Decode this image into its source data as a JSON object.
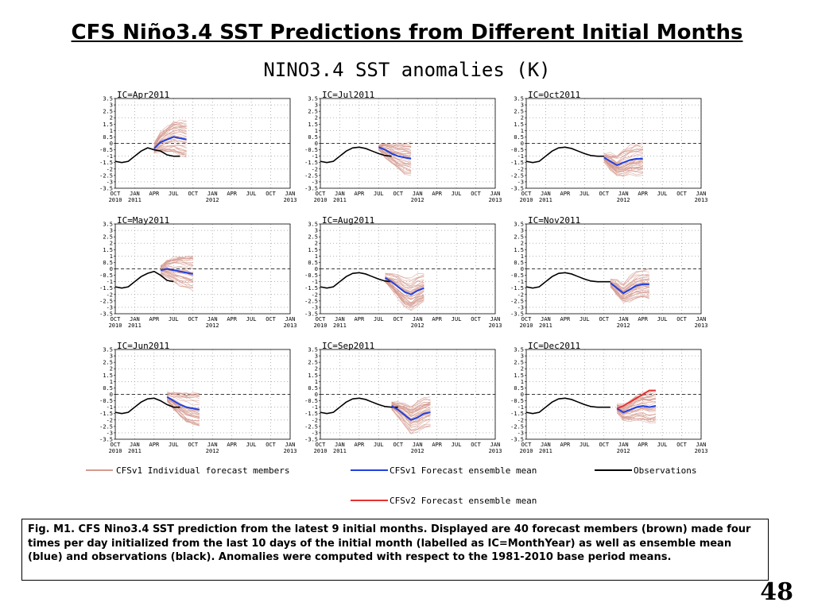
{
  "slide": {
    "title": "CFS Niño3.4 SST Predictions from Different Initial Months",
    "page_number": "48",
    "caption": "Fig. M1. CFS Nino3.4 SST prediction from the latest 9 initial months. Displayed are 40 forecast members (brown) made four times per day initialized from the last 10 days of the initial month (labelled as IC=MonthYear) as well as ensemble mean (blue) and observations (black). Anomalies were computed with respect to the 1981-2010 base period means."
  },
  "figure_title": "NINO3.4  SST  anomalies  (K)",
  "legend": {
    "members": "CFSv1  Individual  forecast  members",
    "mean_v1": "CFSv1  Forecast  ensemble  mean",
    "observations": "Observations",
    "mean_v2": "CFSv2  Forecast  ensemble  mean"
  },
  "colors": {
    "members": "#d49a8e",
    "mean_v1": "#2040e0",
    "observations": "#000000",
    "mean_v2": "#e83030",
    "zero_line": "#000000",
    "grid": "#888888"
  },
  "axes": {
    "y_ticks": [
      "-3.5",
      "-3",
      "-2.5",
      "-2",
      "-1.5",
      "-1",
      "-0.5",
      "0",
      "0.5",
      "1",
      "1.5",
      "2",
      "2.5",
      "3",
      "3.5"
    ],
    "x_ticks": [
      "OCT",
      "JAN",
      "APR",
      "JUL",
      "OCT",
      "JAN",
      "APR",
      "JUL",
      "OCT",
      "JAN"
    ],
    "x_year_labels": [
      {
        "text": "2010",
        "tick": 0
      },
      {
        "text": "2011",
        "tick": 1
      },
      {
        "text": "2012",
        "tick": 5
      },
      {
        "text": "2013",
        "tick": 9
      }
    ]
  },
  "chart_data": [
    {
      "type": "line",
      "ic": "IC=Apr2011",
      "x": "months since Oct 2010",
      "ylim": [
        -3.5,
        3.5
      ],
      "observations": [
        [
          0,
          -1.4
        ],
        [
          1,
          -1.5
        ],
        [
          2,
          -1.4
        ],
        [
          3,
          -1.0
        ],
        [
          4,
          -0.6
        ],
        [
          5,
          -0.35
        ],
        [
          6,
          -0.5
        ],
        [
          7,
          -0.6
        ],
        [
          8,
          -0.9
        ],
        [
          9,
          -1.0
        ],
        [
          10,
          -1.0
        ]
      ],
      "ensemble_mean": [
        [
          6,
          -0.4
        ],
        [
          7,
          0.1
        ],
        [
          8,
          0.3
        ],
        [
          9,
          0.5
        ],
        [
          10,
          0.4
        ],
        [
          11,
          0.3
        ]
      ],
      "spread": [
        [
          6,
          0.3
        ],
        [
          7,
          0.7
        ],
        [
          8,
          1.0
        ],
        [
          9,
          1.2
        ],
        [
          10,
          1.3
        ],
        [
          11,
          1.4
        ]
      ],
      "members_visible": true,
      "mean_color": "blue"
    },
    {
      "type": "line",
      "ic": "IC=Jul2011",
      "ylim": [
        -3.5,
        3.5
      ],
      "observations": [
        [
          0,
          -1.4
        ],
        [
          1,
          -1.5
        ],
        [
          2,
          -1.4
        ],
        [
          3,
          -1.0
        ],
        [
          4,
          -0.6
        ],
        [
          5,
          -0.35
        ],
        [
          6,
          -0.3
        ],
        [
          7,
          -0.4
        ],
        [
          8,
          -0.6
        ],
        [
          9,
          -0.8
        ],
        [
          10,
          -0.95
        ],
        [
          11,
          -1.0
        ]
      ],
      "ensemble_mean": [
        [
          9,
          -0.3
        ],
        [
          10,
          -0.5
        ],
        [
          11,
          -0.8
        ],
        [
          12,
          -1.0
        ],
        [
          13,
          -1.1
        ],
        [
          14,
          -1.2
        ]
      ],
      "spread": [
        [
          9,
          0.2
        ],
        [
          10,
          0.5
        ],
        [
          11,
          0.8
        ],
        [
          12,
          1.0
        ],
        [
          13,
          1.2
        ],
        [
          14,
          1.3
        ]
      ],
      "mean_color": "blue"
    },
    {
      "type": "line",
      "ic": "IC=Oct2011",
      "ylim": [
        -3.5,
        3.5
      ],
      "observations": [
        [
          0,
          -1.4
        ],
        [
          1,
          -1.5
        ],
        [
          2,
          -1.4
        ],
        [
          3,
          -1.0
        ],
        [
          4,
          -0.6
        ],
        [
          5,
          -0.35
        ],
        [
          6,
          -0.3
        ],
        [
          7,
          -0.4
        ],
        [
          8,
          -0.6
        ],
        [
          9,
          -0.8
        ],
        [
          10,
          -0.95
        ],
        [
          11,
          -1.0
        ],
        [
          12,
          -1.0
        ]
      ],
      "ensemble_mean": [
        [
          12,
          -1.1
        ],
        [
          13,
          -1.4
        ],
        [
          14,
          -1.7
        ],
        [
          15,
          -1.5
        ],
        [
          16,
          -1.3
        ],
        [
          17,
          -1.2
        ],
        [
          18,
          -1.2
        ]
      ],
      "spread": [
        [
          12,
          0.3
        ],
        [
          13,
          0.6
        ],
        [
          14,
          0.8
        ],
        [
          15,
          1.0
        ],
        [
          16,
          1.1
        ],
        [
          17,
          1.2
        ],
        [
          18,
          1.2
        ]
      ],
      "mean_color": "blue"
    },
    {
      "type": "line",
      "ic": "IC=May2011",
      "ylim": [
        -3.5,
        3.5
      ],
      "observations": [
        [
          0,
          -1.4
        ],
        [
          1,
          -1.5
        ],
        [
          2,
          -1.4
        ],
        [
          3,
          -1.0
        ],
        [
          4,
          -0.6
        ],
        [
          5,
          -0.35
        ],
        [
          6,
          -0.2
        ],
        [
          7,
          -0.5
        ],
        [
          8,
          -0.9
        ],
        [
          9,
          -1.0
        ]
      ],
      "ensemble_mean": [
        [
          7,
          -0.1
        ],
        [
          8,
          0.0
        ],
        [
          9,
          -0.1
        ],
        [
          10,
          -0.2
        ],
        [
          11,
          -0.3
        ],
        [
          12,
          -0.4
        ]
      ],
      "spread": [
        [
          7,
          0.3
        ],
        [
          8,
          0.6
        ],
        [
          9,
          0.9
        ],
        [
          10,
          1.1
        ],
        [
          11,
          1.2
        ],
        [
          12,
          1.3
        ]
      ],
      "mean_color": "blue"
    },
    {
      "type": "line",
      "ic": "IC=Aug2011",
      "ylim": [
        -3.5,
        3.5
      ],
      "observations": [
        [
          0,
          -1.4
        ],
        [
          1,
          -1.5
        ],
        [
          2,
          -1.4
        ],
        [
          3,
          -1.0
        ],
        [
          4,
          -0.6
        ],
        [
          5,
          -0.35
        ],
        [
          6,
          -0.3
        ],
        [
          7,
          -0.4
        ],
        [
          8,
          -0.6
        ],
        [
          9,
          -0.8
        ],
        [
          10,
          -0.95
        ],
        [
          11,
          -1.0
        ]
      ],
      "ensemble_mean": [
        [
          10,
          -0.7
        ],
        [
          11,
          -1.0
        ],
        [
          12,
          -1.4
        ],
        [
          13,
          -1.8
        ],
        [
          14,
          -2.0
        ],
        [
          15,
          -1.7
        ],
        [
          16,
          -1.5
        ]
      ],
      "spread": [
        [
          10,
          0.3
        ],
        [
          11,
          0.6
        ],
        [
          12,
          0.9
        ],
        [
          13,
          1.1
        ],
        [
          14,
          1.2
        ],
        [
          15,
          1.2
        ],
        [
          16,
          1.1
        ]
      ],
      "mean_color": "blue"
    },
    {
      "type": "line",
      "ic": "IC=Nov2011",
      "ylim": [
        -3.5,
        3.5
      ],
      "observations": [
        [
          0,
          -1.4
        ],
        [
          1,
          -1.5
        ],
        [
          2,
          -1.4
        ],
        [
          3,
          -1.0
        ],
        [
          4,
          -0.6
        ],
        [
          5,
          -0.35
        ],
        [
          6,
          -0.3
        ],
        [
          7,
          -0.4
        ],
        [
          8,
          -0.6
        ],
        [
          9,
          -0.8
        ],
        [
          10,
          -0.95
        ],
        [
          11,
          -1.0
        ],
        [
          12,
          -1.0
        ],
        [
          13,
          -1.0
        ]
      ],
      "ensemble_mean": [
        [
          13,
          -1.1
        ],
        [
          14,
          -1.5
        ],
        [
          15,
          -1.9
        ],
        [
          16,
          -1.6
        ],
        [
          17,
          -1.3
        ],
        [
          18,
          -1.2
        ],
        [
          19,
          -1.2
        ]
      ],
      "spread": [
        [
          13,
          0.3
        ],
        [
          14,
          0.6
        ],
        [
          15,
          0.8
        ],
        [
          16,
          1.0
        ],
        [
          17,
          1.1
        ],
        [
          18,
          1.2
        ],
        [
          19,
          1.2
        ]
      ],
      "mean_color": "blue"
    },
    {
      "type": "line",
      "ic": "IC=Jun2011",
      "ylim": [
        -3.5,
        3.5
      ],
      "observations": [
        [
          0,
          -1.4
        ],
        [
          1,
          -1.5
        ],
        [
          2,
          -1.4
        ],
        [
          3,
          -1.0
        ],
        [
          4,
          -0.6
        ],
        [
          5,
          -0.35
        ],
        [
          6,
          -0.3
        ],
        [
          7,
          -0.5
        ],
        [
          8,
          -0.8
        ],
        [
          9,
          -1.0
        ],
        [
          10,
          -1.0
        ]
      ],
      "ensemble_mean": [
        [
          8,
          -0.2
        ],
        [
          9,
          -0.5
        ],
        [
          10,
          -0.8
        ],
        [
          11,
          -1.0
        ],
        [
          12,
          -1.1
        ],
        [
          13,
          -1.2
        ]
      ],
      "spread": [
        [
          8,
          0.3
        ],
        [
          9,
          0.6
        ],
        [
          10,
          0.9
        ],
        [
          11,
          1.1
        ],
        [
          12,
          1.2
        ],
        [
          13,
          1.3
        ]
      ],
      "mean_color": "blue"
    },
    {
      "type": "line",
      "ic": "IC=Sep2011",
      "ylim": [
        -3.5,
        3.5
      ],
      "observations": [
        [
          0,
          -1.4
        ],
        [
          1,
          -1.5
        ],
        [
          2,
          -1.4
        ],
        [
          3,
          -1.0
        ],
        [
          4,
          -0.6
        ],
        [
          5,
          -0.35
        ],
        [
          6,
          -0.3
        ],
        [
          7,
          -0.4
        ],
        [
          8,
          -0.6
        ],
        [
          9,
          -0.8
        ],
        [
          10,
          -0.95
        ],
        [
          11,
          -1.0
        ],
        [
          12,
          -1.0
        ]
      ],
      "ensemble_mean": [
        [
          11,
          -0.9
        ],
        [
          12,
          -1.2
        ],
        [
          13,
          -1.6
        ],
        [
          14,
          -2.0
        ],
        [
          15,
          -1.8
        ],
        [
          16,
          -1.5
        ],
        [
          17,
          -1.4
        ]
      ],
      "spread": [
        [
          11,
          0.3
        ],
        [
          12,
          0.6
        ],
        [
          13,
          0.9
        ],
        [
          14,
          1.1
        ],
        [
          15,
          1.2
        ],
        [
          16,
          1.2
        ],
        [
          17,
          1.1
        ]
      ],
      "mean_color": "blue"
    },
    {
      "type": "line",
      "ic": "IC=Dec2011",
      "ylim": [
        -3.5,
        3.5
      ],
      "observations": [
        [
          0,
          -1.4
        ],
        [
          1,
          -1.5
        ],
        [
          2,
          -1.4
        ],
        [
          3,
          -1.0
        ],
        [
          4,
          -0.6
        ],
        [
          5,
          -0.35
        ],
        [
          6,
          -0.3
        ],
        [
          7,
          -0.4
        ],
        [
          8,
          -0.6
        ],
        [
          9,
          -0.8
        ],
        [
          10,
          -0.95
        ],
        [
          11,
          -1.0
        ],
        [
          12,
          -1.0
        ],
        [
          13,
          -1.0
        ]
      ],
      "ensemble_mean": [
        [
          14,
          -1.1
        ],
        [
          15,
          -1.4
        ],
        [
          16,
          -1.2
        ],
        [
          17,
          -1.0
        ],
        [
          18,
          -0.9
        ],
        [
          19,
          -1.0
        ],
        [
          20,
          -0.9
        ]
      ],
      "ensemble_mean_v2": [
        [
          14,
          -1.1
        ],
        [
          15,
          -0.9
        ],
        [
          16,
          -0.6
        ],
        [
          17,
          -0.3
        ],
        [
          18,
          0.0
        ],
        [
          19,
          0.3
        ],
        [
          20,
          0.3
        ]
      ],
      "spread": [
        [
          14,
          0.3
        ],
        [
          15,
          0.6
        ],
        [
          16,
          0.8
        ],
        [
          17,
          1.0
        ],
        [
          18,
          1.1
        ],
        [
          19,
          1.2
        ],
        [
          20,
          1.2
        ]
      ],
      "mean_color": "blue"
    }
  ]
}
